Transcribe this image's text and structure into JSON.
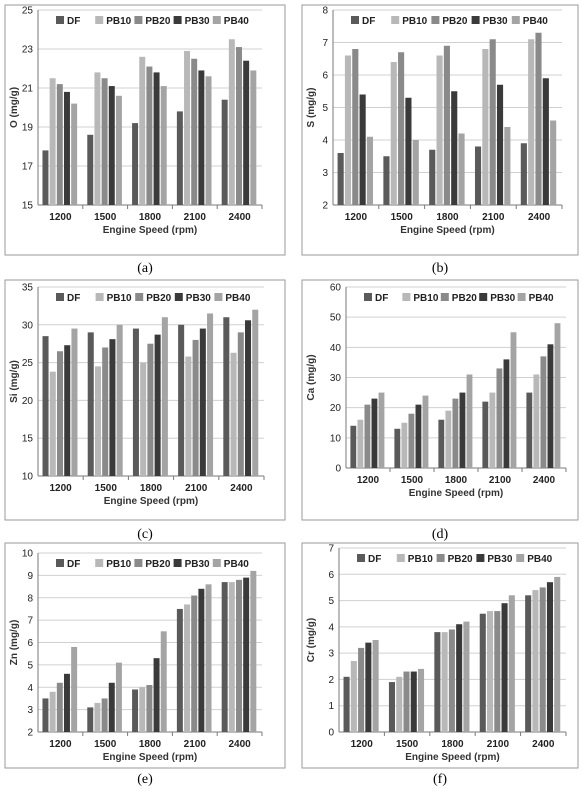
{
  "colors": {
    "DF": "#5a5a5a",
    "PB10": "#b8b8b8",
    "PB20": "#8a8a8a",
    "PB30": "#3a3a3a",
    "PB40": "#a4a4a4",
    "grid": "#d0d0d0",
    "axis": "#7a7a7a"
  },
  "chart_data": [
    {
      "caption": "(a)",
      "type": "bar",
      "ylabel": "O (mg/g)",
      "xlabel": "Engine Speed (rpm)",
      "ylim": [
        15,
        25
      ],
      "yticks": [
        15,
        17,
        19,
        21,
        23,
        25
      ],
      "grid": true,
      "legend": "top",
      "categories": [
        "1200",
        "1500",
        "1800",
        "2100",
        "2400"
      ],
      "series": [
        {
          "name": "DF",
          "values": [
            17.8,
            18.6,
            19.2,
            19.8,
            20.4
          ]
        },
        {
          "name": "PB10",
          "values": [
            21.5,
            21.8,
            22.6,
            22.9,
            23.5
          ]
        },
        {
          "name": "PB20",
          "values": [
            21.2,
            21.5,
            22.1,
            22.5,
            23.1
          ]
        },
        {
          "name": "PB30",
          "values": [
            20.8,
            21.1,
            21.8,
            21.9,
            22.4
          ]
        },
        {
          "name": "PB40",
          "values": [
            20.2,
            20.6,
            21.1,
            21.6,
            21.9
          ]
        }
      ]
    },
    {
      "caption": "(b)",
      "type": "bar",
      "ylabel": "S (mg/g)",
      "xlabel": "Engine Speed (rpm)",
      "ylim": [
        2,
        8
      ],
      "yticks": [
        2,
        3,
        4,
        5,
        6,
        7,
        8
      ],
      "grid": true,
      "legend": "top",
      "categories": [
        "1200",
        "1500",
        "1800",
        "2100",
        "2400"
      ],
      "series": [
        {
          "name": "DF",
          "values": [
            3.6,
            3.5,
            3.7,
            3.8,
            3.9
          ]
        },
        {
          "name": "PB10",
          "values": [
            6.6,
            6.4,
            6.6,
            6.8,
            7.1
          ]
        },
        {
          "name": "PB20",
          "values": [
            6.8,
            6.7,
            6.9,
            7.1,
            7.3
          ]
        },
        {
          "name": "PB30",
          "values": [
            5.4,
            5.3,
            5.5,
            5.7,
            5.9
          ]
        },
        {
          "name": "PB40",
          "values": [
            4.1,
            4.0,
            4.2,
            4.4,
            4.6
          ]
        }
      ]
    },
    {
      "caption": "(c)",
      "type": "bar",
      "ylabel": "Si (mg/g)",
      "xlabel": "Engine Speed (rpm)",
      "ylim": [
        10,
        35
      ],
      "yticks": [
        10,
        15,
        20,
        25,
        30,
        35
      ],
      "grid": true,
      "legend": "top",
      "categories": [
        "1200",
        "1500",
        "1800",
        "2100",
        "2400"
      ],
      "series": [
        {
          "name": "DF",
          "values": [
            28.5,
            29.0,
            29.5,
            30.0,
            31.0
          ]
        },
        {
          "name": "PB10",
          "values": [
            23.8,
            24.5,
            25.0,
            25.8,
            26.3
          ]
        },
        {
          "name": "PB20",
          "values": [
            26.5,
            27.0,
            27.5,
            28.0,
            29.0
          ]
        },
        {
          "name": "PB30",
          "values": [
            27.3,
            28.1,
            28.7,
            29.5,
            30.6
          ]
        },
        {
          "name": "PB40",
          "values": [
            29.5,
            30.0,
            31.0,
            31.5,
            32.0
          ]
        }
      ]
    },
    {
      "caption": "(d)",
      "type": "bar",
      "ylabel": "Ca (mg/g)",
      "xlabel": "Engine Speed (rpm)",
      "ylim": [
        0,
        60
      ],
      "yticks": [
        0,
        10,
        20,
        30,
        40,
        50,
        60
      ],
      "grid": true,
      "legend": "top",
      "categories": [
        "1200",
        "1500",
        "1800",
        "2100",
        "2400"
      ],
      "series": [
        {
          "name": "DF",
          "values": [
            14,
            13,
            16,
            22,
            25
          ]
        },
        {
          "name": "PB10",
          "values": [
            16,
            15,
            19,
            25,
            31
          ]
        },
        {
          "name": "PB20",
          "values": [
            21,
            18,
            23,
            33,
            37
          ]
        },
        {
          "name": "PB30",
          "values": [
            23,
            21,
            25,
            36,
            41
          ]
        },
        {
          "name": "PB40",
          "values": [
            25,
            24,
            31,
            45,
            48
          ]
        }
      ]
    },
    {
      "caption": "(e)",
      "type": "bar",
      "ylabel": "Zn (mg/g)",
      "xlabel": "Engine Speed (rpm)",
      "ylim": [
        2,
        10
      ],
      "yticks": [
        2,
        3,
        4,
        5,
        6,
        7,
        8,
        9,
        10
      ],
      "grid": true,
      "legend": "top",
      "categories": [
        "1200",
        "1500",
        "1800",
        "2100",
        "2400"
      ],
      "series": [
        {
          "name": "DF",
          "values": [
            3.5,
            3.1,
            3.9,
            7.5,
            8.7
          ]
        },
        {
          "name": "PB10",
          "values": [
            3.8,
            3.3,
            4.0,
            7.7,
            8.7
          ]
        },
        {
          "name": "PB20",
          "values": [
            4.2,
            3.5,
            4.1,
            8.1,
            8.8
          ]
        },
        {
          "name": "PB30",
          "values": [
            4.6,
            4.2,
            5.3,
            8.4,
            8.9
          ]
        },
        {
          "name": "PB40",
          "values": [
            5.8,
            5.1,
            6.5,
            8.6,
            9.2
          ]
        }
      ]
    },
    {
      "caption": "(f)",
      "type": "bar",
      "ylabel": "Cr (mg/g)",
      "xlabel": "Engine Speed (rpm)",
      "ylim": [
        0,
        7
      ],
      "yticks": [
        0,
        1,
        2,
        3,
        4,
        5,
        6,
        7
      ],
      "grid": true,
      "legend": "top",
      "categories": [
        "1200",
        "1500",
        "1800",
        "2100",
        "2400"
      ],
      "series": [
        {
          "name": "DF",
          "values": [
            2.1,
            1.9,
            3.8,
            4.5,
            5.2
          ]
        },
        {
          "name": "PB10",
          "values": [
            2.7,
            2.1,
            3.8,
            4.6,
            5.4
          ]
        },
        {
          "name": "PB20",
          "values": [
            3.2,
            2.3,
            3.9,
            4.6,
            5.5
          ]
        },
        {
          "name": "PB30",
          "values": [
            3.4,
            2.3,
            4.1,
            4.9,
            5.7
          ]
        },
        {
          "name": "PB40",
          "values": [
            3.5,
            2.4,
            4.2,
            5.2,
            5.9
          ]
        }
      ]
    }
  ]
}
